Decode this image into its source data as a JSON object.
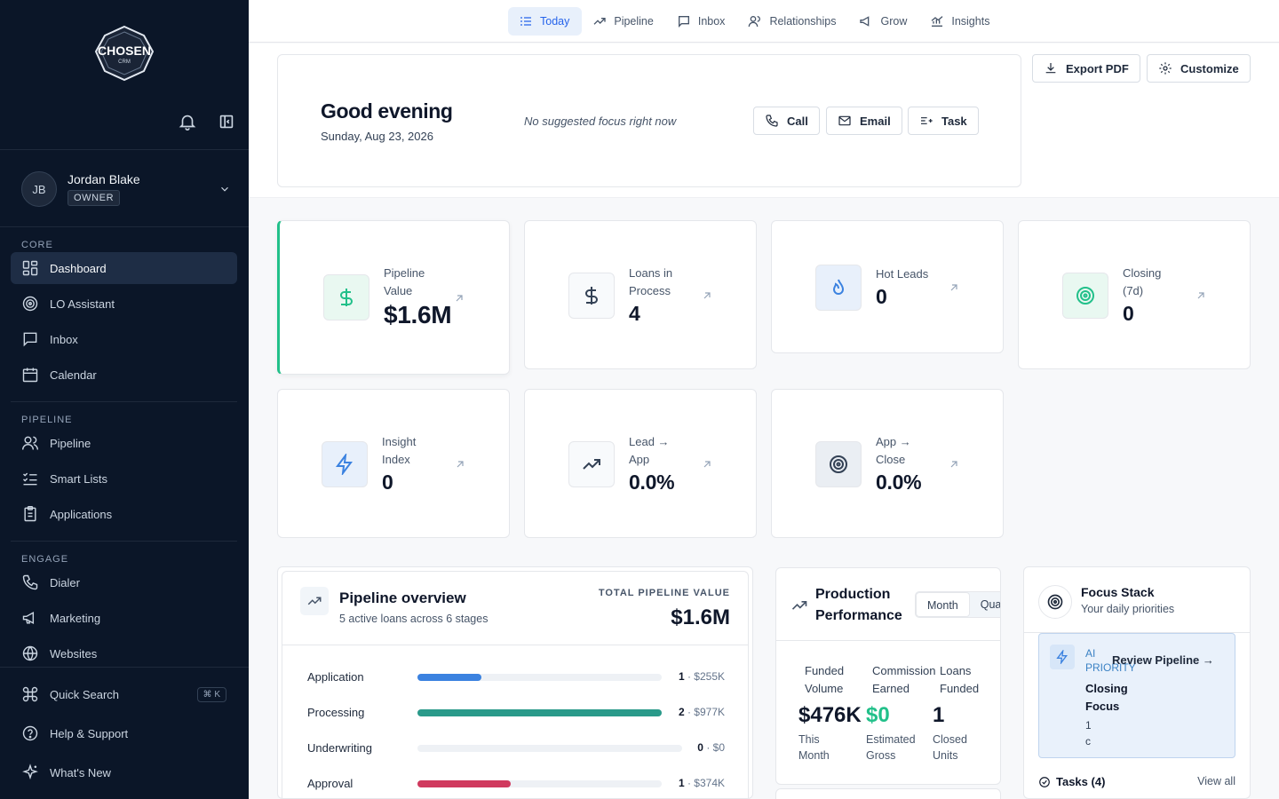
{
  "sidebar": {
    "logo_text": "CHOSEN",
    "logo_sub": "CRM",
    "user": {
      "initials": "JB",
      "name": "Jordan Blake",
      "role": "OWNER"
    },
    "sections": [
      {
        "label": "CORE",
        "items": [
          {
            "label": "Dashboard"
          },
          {
            "label": "LO Assistant"
          },
          {
            "label": "Inbox"
          },
          {
            "label": "Calendar"
          }
        ]
      },
      {
        "label": "PIPELINE",
        "items": [
          {
            "label": "Pipeline"
          },
          {
            "label": "Smart Lists"
          },
          {
            "label": "Applications"
          }
        ]
      },
      {
        "label": "ENGAGE",
        "items": [
          {
            "label": "Dialer"
          },
          {
            "label": "Marketing"
          },
          {
            "label": "Websites"
          }
        ]
      }
    ],
    "bottom": [
      {
        "label": "Quick Search",
        "shortcut": "⌘ K"
      },
      {
        "label": "Help & Support"
      },
      {
        "label": "What's New"
      }
    ]
  },
  "topnav": {
    "tabs": [
      {
        "label": "Today"
      },
      {
        "label": "Pipeline"
      },
      {
        "label": "Inbox"
      },
      {
        "label": "Relationships"
      },
      {
        "label": "Grow"
      },
      {
        "label": "Insights"
      }
    ]
  },
  "header": {
    "export_label": "Export PDF",
    "customize_label": "Customize"
  },
  "greeting": {
    "title": "Good evening",
    "date": "Sunday, Aug 23, 2026",
    "focus": "No suggested focus right now",
    "actions": {
      "call": "Call",
      "email": "Email",
      "task": "Task"
    }
  },
  "kpis": [
    {
      "label": "Pipeline Value",
      "value": "$1.6M"
    },
    {
      "label": "Loans in Process",
      "value": "4"
    },
    {
      "label": "Hot Leads",
      "value": "0"
    },
    {
      "label": "Closing (7d)",
      "value": "0"
    },
    {
      "label": "Insight Index",
      "value": "0"
    },
    {
      "label": "Lead → App",
      "value": "0.0%"
    },
    {
      "label": "App → Close",
      "value": "0.0%"
    }
  ],
  "pipeline_overview": {
    "title": "Pipeline overview",
    "subtitle": "5 active loans across 6 stages",
    "total_label": "TOTAL PIPELINE VALUE",
    "total_value": "$1.6M",
    "stages": [
      {
        "name": "Application",
        "count": "1",
        "amount": "· $255K",
        "fill": 0.26,
        "color": "#3b82e0"
      },
      {
        "name": "Processing",
        "count": "2",
        "amount": "· $977K",
        "fill": 1.0,
        "color": "#2a9a8a"
      },
      {
        "name": "Underwriting",
        "count": "0",
        "amount": "· $0",
        "fill": 0,
        "color": "#eef1f5"
      },
      {
        "name": "Approval",
        "count": "1",
        "amount": "· $374K",
        "fill": 0.38,
        "color": "#d03a5e"
      }
    ]
  },
  "production": {
    "title": "Production Performance",
    "segments": [
      {
        "label": "Month"
      },
      {
        "label": "Qua"
      }
    ],
    "metrics": [
      {
        "label": "Funded Volume",
        "value": "$476K",
        "sub": "This Month"
      },
      {
        "label": "Commission Earned",
        "value": "$0",
        "sub": "Estimated Gross",
        "color": "#22c08a"
      },
      {
        "label": "Loans Funded",
        "value": "1",
        "sub": "Closed Units"
      }
    ]
  },
  "focus_stack": {
    "title": "Focus Stack",
    "subtitle": "Your daily priorities",
    "ai_tag": "AI PRIORITY",
    "ai_link": "Review Pipeline →",
    "ai_name": "Closing Focus",
    "ai_meta": "1 c",
    "tasks_label": "Tasks (4)",
    "view_all": "View all"
  }
}
